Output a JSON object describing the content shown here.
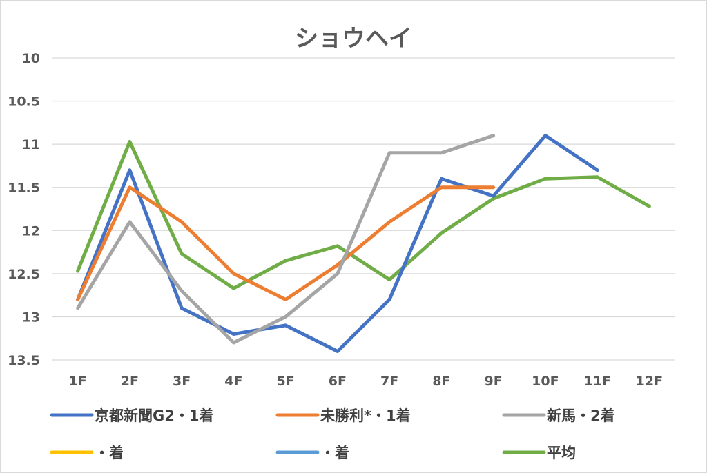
{
  "chart_data": {
    "type": "line",
    "title": "ショウヘイ",
    "xlabel": "",
    "ylabel": "",
    "ylim": [
      10,
      13.5
    ],
    "y_inverted": true,
    "y_ticks": [
      "10",
      "10.5",
      "11",
      "11.5",
      "12",
      "12.5",
      "13",
      "13.5"
    ],
    "grid": true,
    "legend_position": "bottom",
    "categories": [
      "1F",
      "2F",
      "3F",
      "4F",
      "5F",
      "6F",
      "7F",
      "8F",
      "9F",
      "10F",
      "11F",
      "12F"
    ],
    "series": [
      {
        "name": "京都新聞G2・1着",
        "color": "#4472c4",
        "values": [
          12.8,
          11.3,
          12.9,
          13.2,
          13.1,
          13.4,
          12.8,
          11.4,
          11.6,
          10.9,
          11.3,
          null
        ]
      },
      {
        "name": "未勝利*・1着",
        "color": "#ed7d31",
        "values": [
          12.8,
          11.5,
          11.9,
          12.5,
          12.8,
          12.4,
          11.9,
          11.5,
          11.5,
          null,
          null,
          null
        ]
      },
      {
        "name": "新馬・2着",
        "color": "#a5a5a5",
        "values": [
          12.9,
          11.9,
          12.7,
          13.3,
          13.0,
          12.5,
          11.1,
          11.1,
          10.9,
          null,
          null,
          null
        ]
      },
      {
        "name": "・着",
        "color": "#ffc000",
        "values": [
          null,
          null,
          null,
          null,
          null,
          null,
          null,
          null,
          null,
          null,
          null,
          null
        ]
      },
      {
        "name": "・着",
        "color": "#5b9bd5",
        "values": [
          null,
          null,
          null,
          null,
          null,
          null,
          null,
          null,
          null,
          null,
          null,
          null
        ]
      },
      {
        "name": "平均",
        "color": "#70ad47",
        "values": [
          12.47,
          10.97,
          12.27,
          12.67,
          12.35,
          12.18,
          12.57,
          12.03,
          11.63,
          11.4,
          11.38,
          11.72
        ]
      }
    ]
  }
}
